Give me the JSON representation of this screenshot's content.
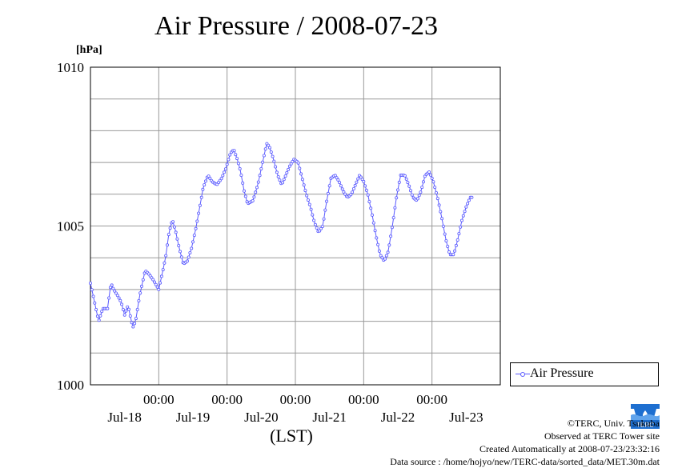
{
  "page": {
    "title": "Air Pressure / 2008-07-23",
    "unit_label": "[hPa]",
    "legend_label": "Air Pressure",
    "credits": [
      "©TERC, Univ. Tsukuba",
      "Observed at TERC Tower site",
      "Created Automatically at 2008-07-23/23:32:16",
      "Data source : /home/hojyo/new/TERC-data/sorted_data/MET.30m.dat"
    ],
    "logo_text": "TERC"
  },
  "chart_data": {
    "type": "line",
    "title": "Air Pressure / 2008-07-23",
    "xlabel": "(LST)",
    "ylabel": "[hPa]",
    "xlim": [
      0,
      6
    ],
    "ylim": [
      1000,
      1010
    ],
    "yticks": [
      1000,
      1005,
      1010
    ],
    "y_gridlines": [
      1000,
      1001,
      1002,
      1003,
      1004,
      1005,
      1006,
      1007,
      1008,
      1009,
      1010
    ],
    "x_time_ticks": [
      "00:00",
      "00:00",
      "00:00",
      "00:00",
      "00:00"
    ],
    "x_date_labels": [
      "Jul-18",
      "Jul-19",
      "Jul-20",
      "Jul-21",
      "Jul-22",
      "Jul-23"
    ],
    "grid": true,
    "legend": "right",
    "color": "#5a5aff",
    "series": [
      {
        "name": "Air Pressure",
        "anchors_day_hPa": [
          [
            0.0,
            1003.2
          ],
          [
            0.05,
            1002.7
          ],
          [
            0.12,
            1002.0
          ],
          [
            0.18,
            1002.4
          ],
          [
            0.25,
            1002.4
          ],
          [
            0.3,
            1003.2
          ],
          [
            0.34,
            1003.0
          ],
          [
            0.4,
            1002.8
          ],
          [
            0.45,
            1002.6
          ],
          [
            0.5,
            1002.2
          ],
          [
            0.55,
            1002.5
          ],
          [
            0.62,
            1001.8
          ],
          [
            0.66,
            1002.0
          ],
          [
            0.72,
            1002.8
          ],
          [
            0.8,
            1003.6
          ],
          [
            0.85,
            1003.5
          ],
          [
            0.92,
            1003.3
          ],
          [
            1.0,
            1003.0
          ],
          [
            1.05,
            1003.5
          ],
          [
            1.1,
            1004.0
          ],
          [
            1.15,
            1004.8
          ],
          [
            1.2,
            1005.2
          ],
          [
            1.25,
            1004.8
          ],
          [
            1.3,
            1004.3
          ],
          [
            1.36,
            1003.8
          ],
          [
            1.42,
            1003.9
          ],
          [
            1.48,
            1004.3
          ],
          [
            1.55,
            1005.0
          ],
          [
            1.6,
            1005.6
          ],
          [
            1.65,
            1006.2
          ],
          [
            1.72,
            1006.6
          ],
          [
            1.78,
            1006.4
          ],
          [
            1.85,
            1006.3
          ],
          [
            1.92,
            1006.5
          ],
          [
            1.98,
            1006.8
          ],
          [
            2.05,
            1007.3
          ],
          [
            2.1,
            1007.4
          ],
          [
            2.15,
            1007.1
          ],
          [
            2.2,
            1006.7
          ],
          [
            2.25,
            1006.1
          ],
          [
            2.3,
            1005.7
          ],
          [
            2.38,
            1005.8
          ],
          [
            2.45,
            1006.3
          ],
          [
            2.52,
            1007.0
          ],
          [
            2.58,
            1007.6
          ],
          [
            2.62,
            1007.5
          ],
          [
            2.68,
            1007.1
          ],
          [
            2.74,
            1006.6
          ],
          [
            2.8,
            1006.3
          ],
          [
            2.86,
            1006.6
          ],
          [
            2.92,
            1006.9
          ],
          [
            2.98,
            1007.1
          ],
          [
            3.04,
            1007.0
          ],
          [
            3.1,
            1006.5
          ],
          [
            3.16,
            1006.0
          ],
          [
            3.22,
            1005.6
          ],
          [
            3.28,
            1005.1
          ],
          [
            3.34,
            1004.8
          ],
          [
            3.4,
            1005.0
          ],
          [
            3.46,
            1005.8
          ],
          [
            3.52,
            1006.5
          ],
          [
            3.58,
            1006.6
          ],
          [
            3.64,
            1006.4
          ],
          [
            3.7,
            1006.1
          ],
          [
            3.76,
            1005.9
          ],
          [
            3.82,
            1006.0
          ],
          [
            3.88,
            1006.3
          ],
          [
            3.94,
            1006.6
          ],
          [
            4.0,
            1006.4
          ],
          [
            4.06,
            1006.0
          ],
          [
            4.12,
            1005.4
          ],
          [
            4.18,
            1004.7
          ],
          [
            4.24,
            1004.1
          ],
          [
            4.3,
            1003.9
          ],
          [
            4.36,
            1004.2
          ],
          [
            4.42,
            1005.0
          ],
          [
            4.48,
            1005.9
          ],
          [
            4.54,
            1006.6
          ],
          [
            4.6,
            1006.6
          ],
          [
            4.66,
            1006.3
          ],
          [
            4.72,
            1005.9
          ],
          [
            4.78,
            1005.8
          ],
          [
            4.84,
            1006.1
          ],
          [
            4.9,
            1006.6
          ],
          [
            4.96,
            1006.7
          ],
          [
            5.02,
            1006.4
          ],
          [
            5.08,
            1005.9
          ],
          [
            5.14,
            1005.3
          ],
          [
            5.2,
            1004.6
          ],
          [
            5.26,
            1004.1
          ],
          [
            5.32,
            1004.1
          ],
          [
            5.38,
            1004.6
          ],
          [
            5.44,
            1005.2
          ],
          [
            5.5,
            1005.6
          ],
          [
            5.56,
            1005.9
          ],
          [
            5.6,
            1005.9
          ]
        ]
      }
    ]
  }
}
